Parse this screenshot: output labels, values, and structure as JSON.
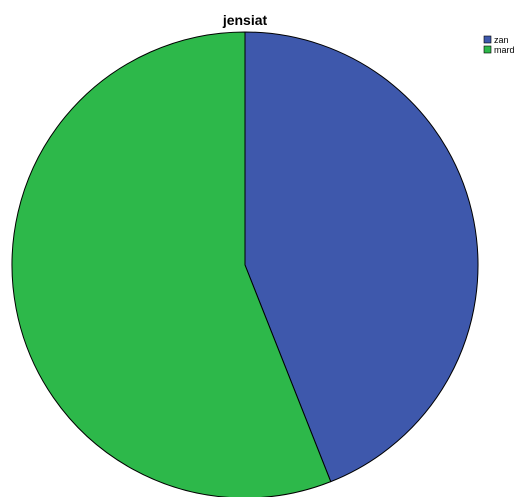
{
  "chart_data": {
    "type": "pie",
    "title": "jensiat",
    "categories": [
      "zan",
      "mard"
    ],
    "values": [
      44,
      56
    ],
    "colors": [
      "#3e58ac",
      "#2db84a"
    ],
    "start_angle_deg": 0,
    "direction": "clockwise",
    "legend_position": "top-right",
    "slice_labels": "none"
  }
}
